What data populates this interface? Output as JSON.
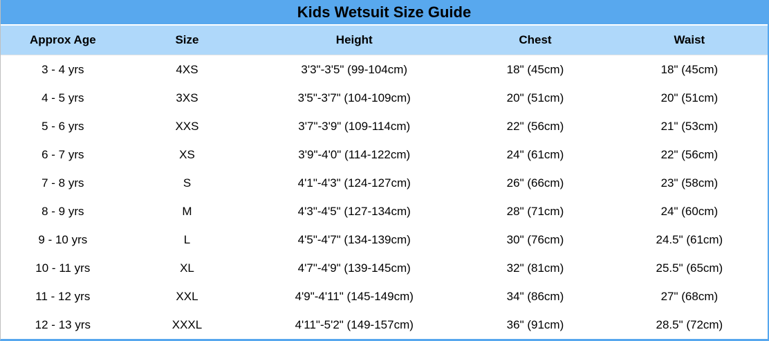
{
  "colors": {
    "title_bar_bg": "#58a8ee",
    "header_bg": "#afd8fa",
    "border_blue": "#56a7ee",
    "row_bg": "#ffffff",
    "text": "#000000"
  },
  "chart_data": {
    "type": "table",
    "title": "Kids Wetsuit Size Guide",
    "columns": [
      "Approx Age",
      "Size",
      "Height",
      "Chest",
      "Waist"
    ],
    "rows": [
      [
        "3 - 4 yrs",
        "4XS",
        "3'3\"-3'5\" (99-104cm)",
        "18\" (45cm)",
        "18\" (45cm)"
      ],
      [
        "4 - 5 yrs",
        "3XS",
        "3'5\"-3'7\" (104-109cm)",
        "20\" (51cm)",
        "20\" (51cm)"
      ],
      [
        "5 - 6 yrs",
        "XXS",
        "3'7\"-3'9\" (109-114cm)",
        "22\" (56cm)",
        "21\" (53cm)"
      ],
      [
        "6 - 7 yrs",
        "XS",
        "3'9\"-4'0\" (114-122cm)",
        "24\" (61cm)",
        "22\" (56cm)"
      ],
      [
        "7 - 8 yrs",
        "S",
        "4'1\"-4'3\" (124-127cm)",
        "26\" (66cm)",
        "23\" (58cm)"
      ],
      [
        "8 - 9 yrs",
        "M",
        "4'3\"-4'5\" (127-134cm)",
        "28\" (71cm)",
        "24\" (60cm)"
      ],
      [
        "9 - 10 yrs",
        "L",
        "4'5\"-4'7\" (134-139cm)",
        "30\" (76cm)",
        "24.5\" (61cm)"
      ],
      [
        "10 - 11 yrs",
        "XL",
        "4'7\"-4'9\" (139-145cm)",
        "32\" (81cm)",
        "25.5\" (65cm)"
      ],
      [
        "11 - 12 yrs",
        "XXL",
        "4'9\"-4'11\" (145-149cm)",
        "34\" (86cm)",
        "27\" (68cm)"
      ],
      [
        "12 - 13 yrs",
        "XXXL",
        "4'11\"-5'2\" (149-157cm)",
        "36\" (91cm)",
        "28.5\" (72cm)"
      ]
    ]
  }
}
